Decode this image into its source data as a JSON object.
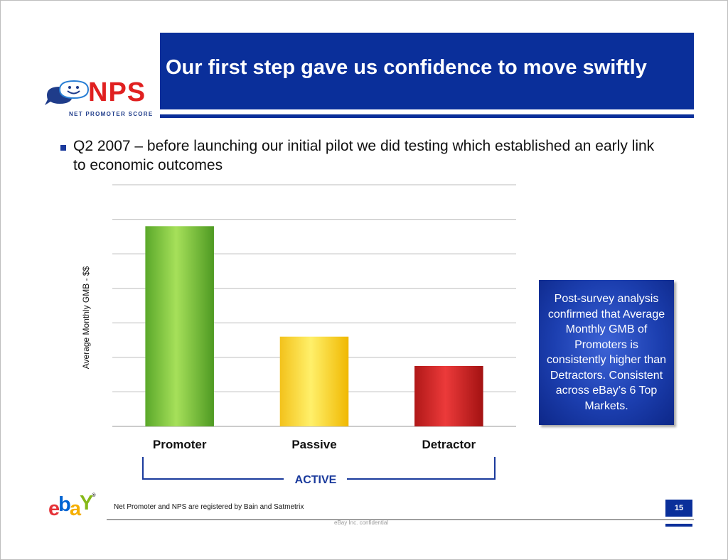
{
  "slide": {
    "title": "Our first step gave us confidence to move swiftly",
    "bullet": "Q2 2007 – before  launching our initial pilot we did testing which established an early link to economic outcomes",
    "callout": "Post-survey analysis confirmed that Average Monthly GMB of Promoters is consistently higher than Detractors. Consistent across eBay’s 6 Top Markets.",
    "footer_note": "Net Promoter and NPS are registered by Bain and Satmetrix",
    "confidential": "eBay Inc. confidential",
    "page_number": "15",
    "colors": {
      "title_bar": "#0a2f9a",
      "callout": "#1c3fb0"
    }
  },
  "logos": {
    "nps_word": "NPS",
    "nps_subtitle": "NET PROMOTER SCORE",
    "ebay_letters": [
      "e",
      "b",
      "a",
      "Y"
    ],
    "ebay_colors": [
      "#e53238",
      "#0064d2",
      "#f5af02",
      "#86b817"
    ],
    "ebay_tm": "®"
  },
  "chart_data": {
    "type": "bar",
    "categories": [
      "Promoter",
      "Passive",
      "Detractor"
    ],
    "values": [
      5.8,
      2.6,
      1.75
    ],
    "ylim": [
      0,
      7
    ],
    "ylabel": "Average Monthly GMB - $$",
    "xlabel": "",
    "grid": true,
    "bar_colors": [
      "#7cc63f",
      "#fdd835",
      "#d32f2f"
    ],
    "bracket_label": "ACTIVE"
  }
}
